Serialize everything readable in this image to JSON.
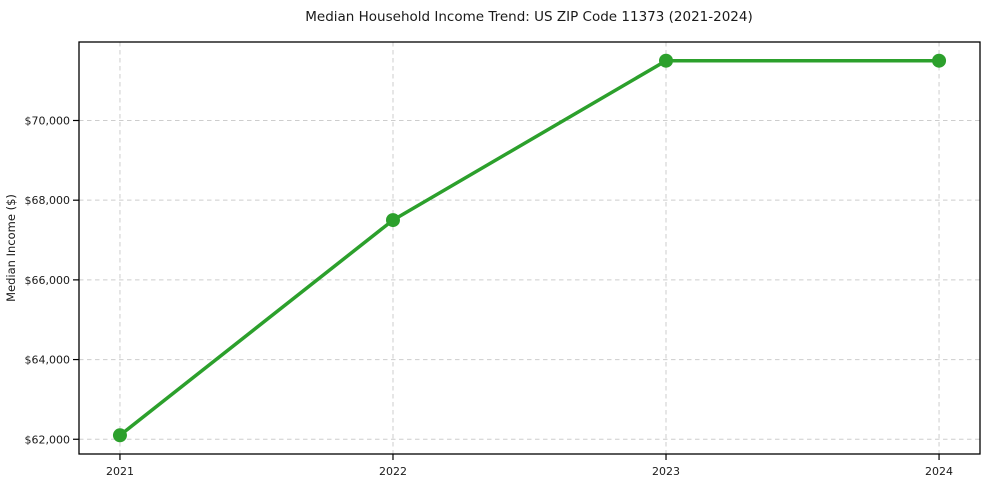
{
  "chart_data": {
    "type": "line",
    "title": "Median Household Income Trend: US ZIP Code 11373 (2021-2024)",
    "xlabel": "",
    "ylabel": "Median Income ($)",
    "x": [
      2021,
      2022,
      2023,
      2024
    ],
    "y": [
      62100,
      67500,
      71500,
      71500
    ],
    "x_tick_labels": [
      "2021",
      "2022",
      "2023",
      "2024"
    ],
    "y_ticks": [
      62000,
      64000,
      66000,
      68000,
      70000
    ],
    "y_tick_labels": [
      "$62,000",
      "$64,000",
      "$66,000",
      "$68,000",
      "$70,000"
    ],
    "xlim": [
      2020.85,
      2024.15
    ],
    "ylim": [
      61630,
      71970
    ],
    "grid": true,
    "grid_style": "dashed",
    "legend": "none",
    "line_color": "#2ca02c",
    "marker": "circle",
    "marker_color": "#2ca02c",
    "background": "#ffffff"
  }
}
